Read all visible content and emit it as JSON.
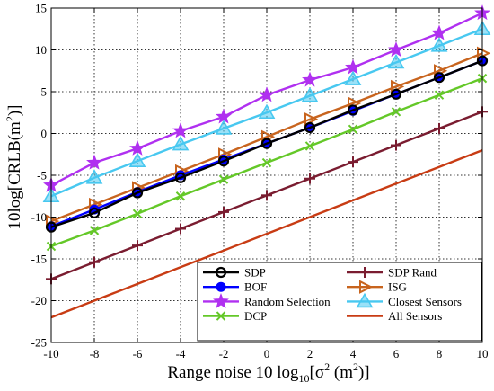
{
  "chart_data": {
    "type": "line",
    "xlabel_prefix": "Range noise 10 log",
    "xlabel_sub": "10",
    "xlabel_mid": "[σ",
    "xlabel_sup": "2",
    "xlabel_unit": " (m",
    "xlabel_unit_sup": "2",
    "xlabel_end": ")]",
    "ylabel_main": "10log[CRLB(m",
    "ylabel_sup": "2",
    "ylabel_end": ")]",
    "xlim": [
      -10,
      10
    ],
    "ylim": [
      -25,
      15
    ],
    "xticks": [
      -10,
      -8,
      -6,
      -4,
      -2,
      0,
      2,
      4,
      6,
      8,
      10
    ],
    "yticks": [
      -25,
      -20,
      -15,
      -10,
      -5,
      0,
      5,
      10,
      15
    ],
    "xtick_labels": [
      "-10",
      "-8",
      "-6",
      "-4",
      "-2",
      "0",
      "2",
      "4",
      "6",
      "8",
      "10"
    ],
    "ytick_labels": [
      "-25",
      "-20",
      "-15",
      "-10",
      "-5",
      "0",
      "5",
      "10",
      "15"
    ],
    "grid": true,
    "legend_position": "bottom-right",
    "x": [
      -10,
      -8,
      -6,
      -4,
      -2,
      0,
      2,
      4,
      6,
      8,
      10
    ],
    "series": [
      {
        "name": "SDP",
        "color": "#000000",
        "marker": "circle",
        "values": [
          -11.2,
          -9.5,
          -7.1,
          -5.3,
          -3.3,
          -1.2,
          0.7,
          2.8,
          4.7,
          6.7,
          8.7
        ]
      },
      {
        "name": "SDP Rand",
        "color": "#7a1c30",
        "marker": "plus",
        "values": [
          -17.4,
          -15.4,
          -13.4,
          -11.4,
          -9.4,
          -7.4,
          -5.4,
          -3.4,
          -1.4,
          0.6,
          2.6
        ]
      },
      {
        "name": "BOF",
        "color": "#0000ff",
        "marker": "dot",
        "values": [
          -11.1,
          -9.1,
          -7.0,
          -5.0,
          -3.1,
          -1.2,
          0.7,
          2.7,
          4.7,
          6.7,
          8.7
        ]
      },
      {
        "name": "ISG",
        "color": "#c8641e",
        "marker": "triangle-right",
        "values": [
          -10.5,
          -8.5,
          -6.5,
          -4.5,
          -2.5,
          -0.4,
          1.7,
          3.6,
          5.6,
          7.5,
          9.6
        ]
      },
      {
        "name": "Random Selection",
        "color": "#b030f0",
        "marker": "star",
        "values": [
          -6.2,
          -3.5,
          -1.8,
          0.3,
          2.0,
          4.6,
          6.4,
          7.9,
          10.0,
          12.0,
          14.4
        ]
      },
      {
        "name": "Closest Sensors",
        "color": "#48c8f0",
        "marker": "triangle-up",
        "values": [
          -7.5,
          -5.3,
          -3.3,
          -1.3,
          0.6,
          2.5,
          4.5,
          6.5,
          8.5,
          10.5,
          12.5
        ]
      },
      {
        "name": "DCP",
        "color": "#64c828",
        "marker": "x",
        "values": [
          -13.5,
          -11.6,
          -9.6,
          -7.5,
          -5.5,
          -3.5,
          -1.5,
          0.5,
          2.6,
          4.6,
          6.6
        ]
      },
      {
        "name": "All Sensors",
        "color": "#c83c14",
        "marker": "none",
        "values": [
          -22.0,
          -20.0,
          -18.0,
          -16.0,
          -14.0,
          -12.0,
          -10.0,
          -8.0,
          -6.0,
          -4.0,
          -2.0
        ]
      }
    ]
  }
}
